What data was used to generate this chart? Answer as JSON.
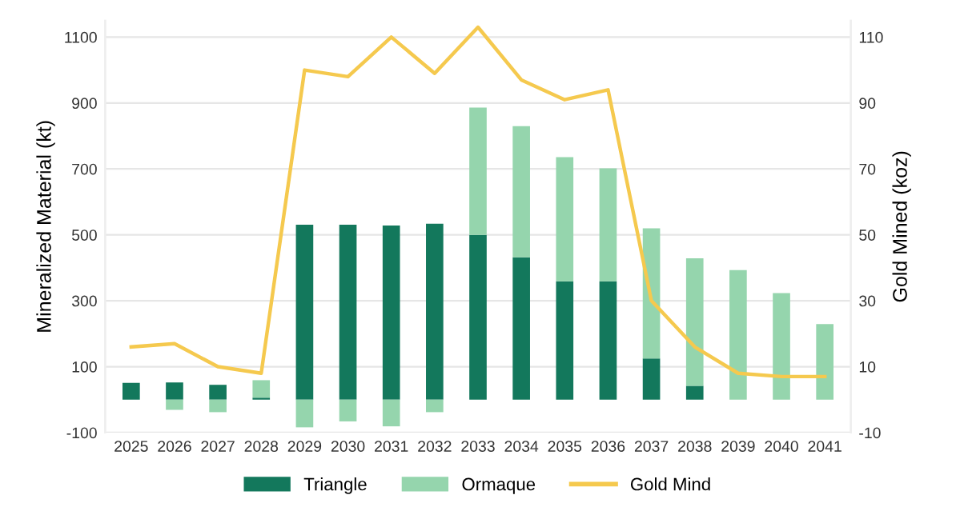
{
  "chart_data": {
    "type": "bar",
    "stacked": true,
    "categories": [
      "2025",
      "2026",
      "2027",
      "2028",
      "2029",
      "2030",
      "2031",
      "2032",
      "2033",
      "2034",
      "2035",
      "2036",
      "2037",
      "2038",
      "2039",
      "2040",
      "2041"
    ],
    "series": [
      {
        "name": "Triangle",
        "color": "#13785c",
        "values": [
          51,
          52,
          45,
          6,
          531,
          531,
          528,
          534,
          500,
          432,
          359,
          359,
          125,
          42,
          null,
          null,
          null
        ]
      },
      {
        "name": "Ormaque",
        "color": "#95d5ad",
        "values": [
          null,
          -31,
          -38,
          53,
          -84,
          -66,
          -81,
          -38,
          386,
          398,
          377,
          343,
          395,
          387,
          393,
          323,
          229
        ]
      },
      {
        "name": "Gold Mind",
        "type": "line",
        "axis": "y2",
        "color": "#f5c94e",
        "values": [
          16,
          17,
          10,
          8,
          100,
          98,
          110,
          99,
          113,
          97,
          91,
          94,
          30,
          16,
          8,
          7,
          7
        ]
      }
    ],
    "ylabel": "Mineralized Material (kt)",
    "y2label": "Gold Mined (koz)",
    "ylim": [
      -100,
      1150
    ],
    "yticks": [
      -100,
      100,
      300,
      500,
      700,
      900,
      1100
    ],
    "y2lim": [
      -10,
      115
    ],
    "y2ticks": [
      -10,
      10,
      30,
      50,
      70,
      90,
      110
    ],
    "grid": "y",
    "legend": "bottom",
    "marker": "none",
    "line_style": "solid"
  }
}
